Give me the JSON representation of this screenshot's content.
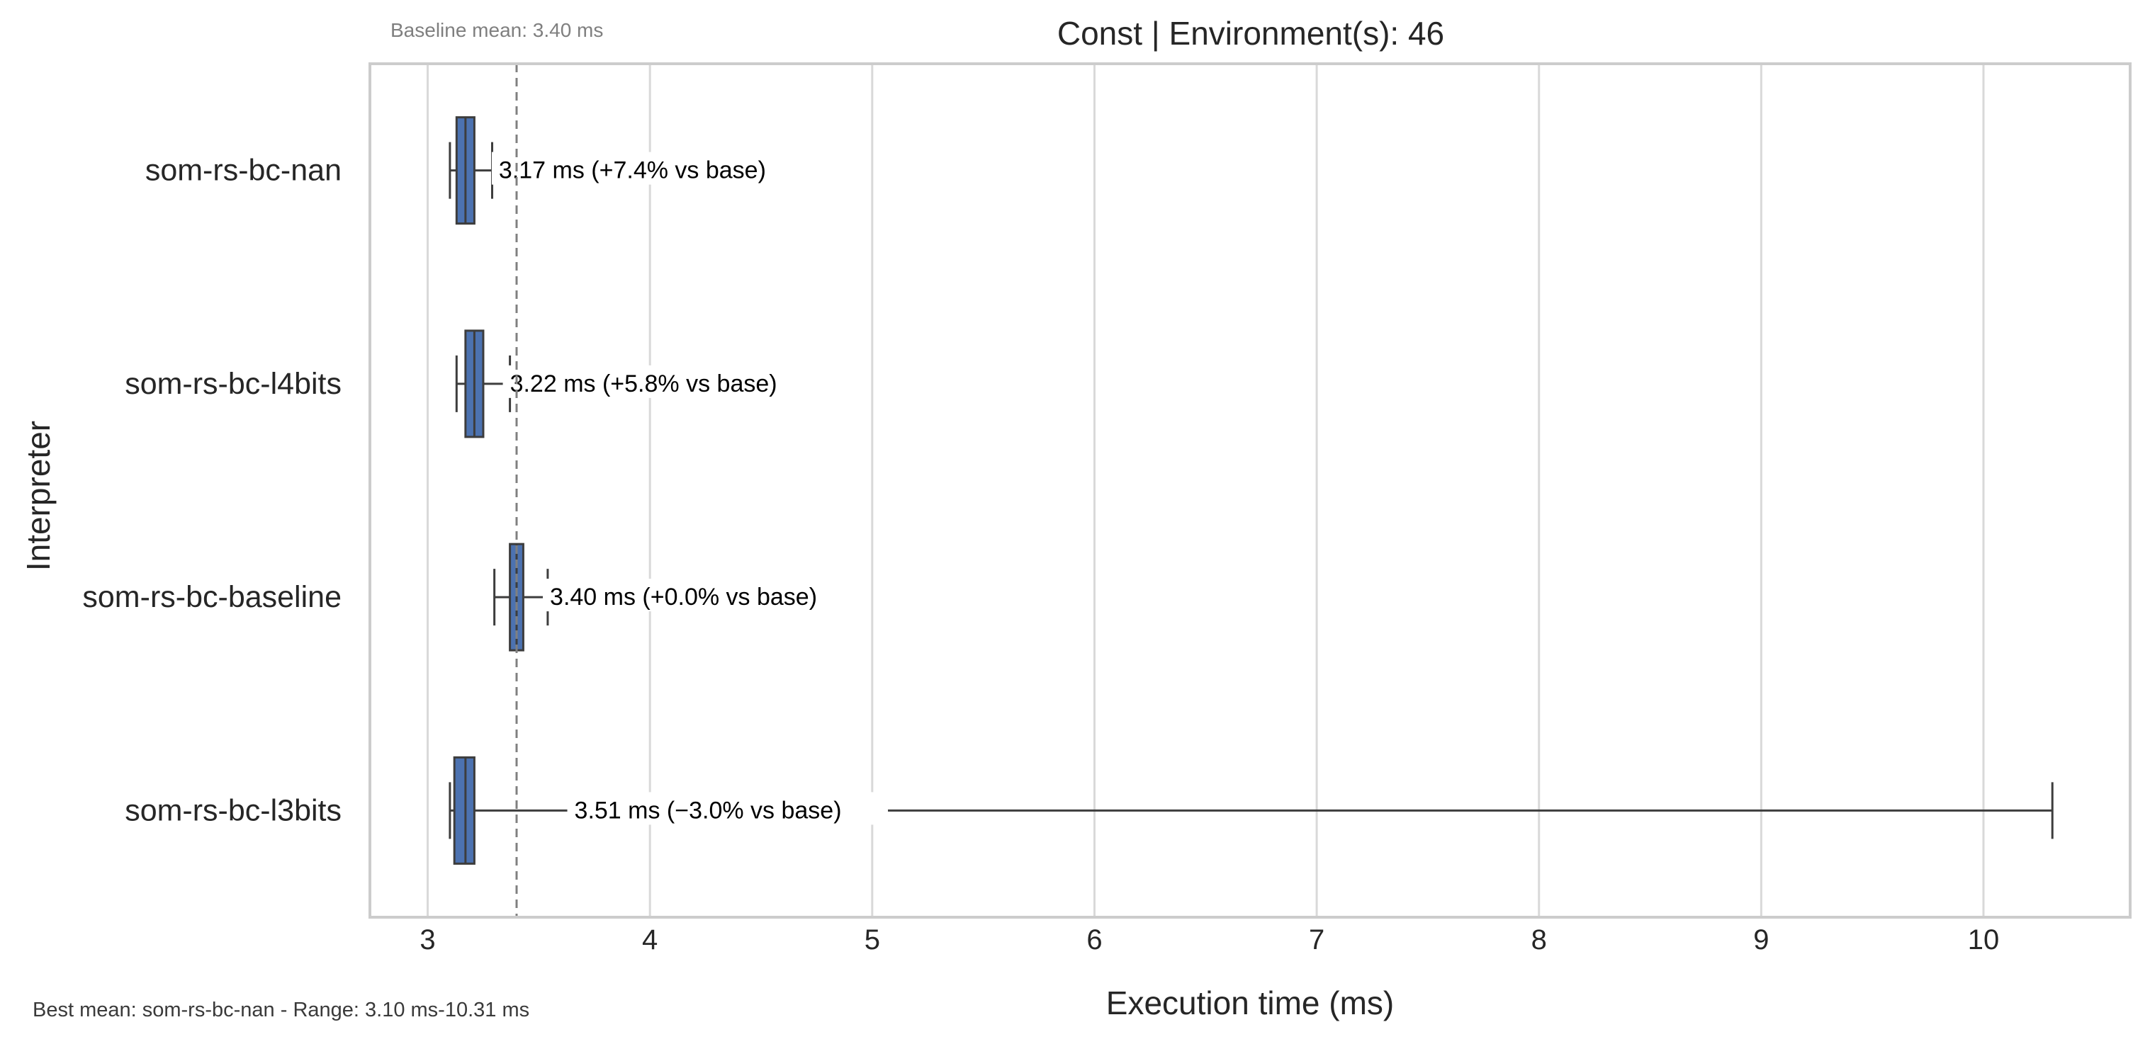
{
  "chart_data": {
    "type": "box",
    "orientation": "horizontal",
    "title": "Const | Environment(s): 46",
    "xlabel": "Execution time (ms)",
    "ylabel": "Interpreter",
    "xlim": [
      2.74,
      10.66
    ],
    "xticks": [
      3,
      4,
      5,
      6,
      7,
      8,
      9,
      10
    ],
    "grid": "x",
    "baseline_note": "Baseline mean: 3.40 ms",
    "baseline_mean": 3.4,
    "footer_note": "Best mean: som-rs-bc-nan - Range: 3.10 ms-10.31 ms",
    "box_color": "#4c72b0",
    "categories": [
      "som-rs-bc-nan",
      "som-rs-bc-l4bits",
      "som-rs-bc-baseline",
      "som-rs-bc-l3bits"
    ],
    "boxes": [
      {
        "name": "som-rs-bc-nan",
        "whislo": 3.1,
        "q1": 3.13,
        "med": 3.17,
        "q3": 3.21,
        "whishi": 3.29,
        "label": "3.17 ms  (+7.4% vs base)",
        "label_x": 3.32
      },
      {
        "name": "som-rs-bc-l4bits",
        "whislo": 3.13,
        "q1": 3.17,
        "med": 3.21,
        "q3": 3.25,
        "whishi": 3.37,
        "label": "3.22 ms  (+5.8% vs base)",
        "label_x": 3.37
      },
      {
        "name": "som-rs-bc-baseline",
        "whislo": 3.3,
        "q1": 3.37,
        "med": 3.4,
        "q3": 3.43,
        "whishi": 3.54,
        "label": "3.40 ms  (+0.0% vs base)",
        "label_x": 3.55
      },
      {
        "name": "som-rs-bc-l3bits",
        "whislo": 3.1,
        "q1": 3.12,
        "med": 3.17,
        "q3": 3.21,
        "whishi": 10.31,
        "label": "3.51 ms  (−3.0% vs base)",
        "label_x": 3.66
      }
    ]
  }
}
